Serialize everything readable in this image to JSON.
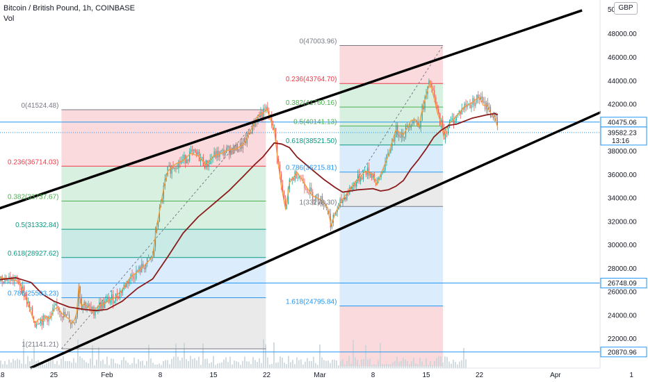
{
  "header": {
    "title": "Bitcoin / British Pound, 1h, COINBASE",
    "volume_label": "Vol"
  },
  "currency_badge": "GBP",
  "chart_data": {
    "type": "line",
    "title": "Bitcoin / British Pound, 1h, COINBASE",
    "ylim": [
      19500,
      50500
    ],
    "y_ticks": [
      22000,
      24000,
      26000,
      28000,
      30000,
      32000,
      34000,
      36000,
      38000,
      40000,
      42000,
      44000,
      46000,
      48000
    ],
    "y_tick_labels": [
      "22000.00",
      "24000.00",
      "26000.00",
      "28000.00",
      "30000.00",
      "32000.00",
      "34000.00",
      "36000.00",
      "38000.00",
      "40000.00",
      "42000.00",
      "44000.00",
      "46000.00",
      "48000.00"
    ],
    "y_top_partial_label": "50",
    "x_ticks": [
      {
        "label": "18",
        "day": -14
      },
      {
        "label": "25",
        "day": -7
      },
      {
        "label": "Feb",
        "day": 0
      },
      {
        "label": "8",
        "day": 7
      },
      {
        "label": "15",
        "day": 14
      },
      {
        "label": "22",
        "day": 21
      },
      {
        "label": "Mar",
        "day": 28
      },
      {
        "label": "8",
        "day": 35
      },
      {
        "label": "15",
        "day": 42
      },
      {
        "label": "22",
        "day": 49
      },
      {
        "label": "Apr",
        "day": 59
      },
      {
        "label": "1",
        "day": 69
      }
    ],
    "price_series": [
      [
        -14.7,
        27600
      ],
      [
        -14,
        27200
      ],
      [
        -12.5,
        27100
      ],
      [
        -11.5,
        26800
      ],
      [
        -11,
        26000
      ],
      [
        -10.5,
        25100
      ],
      [
        -10,
        24200
      ],
      [
        -9.5,
        23300
      ],
      [
        -9,
        23700
      ],
      [
        -8.5,
        23500
      ],
      [
        -8,
        23900
      ],
      [
        -7.5,
        23700
      ],
      [
        -7,
        24500
      ],
      [
        -6.5,
        24700
      ],
      [
        -6,
        24200
      ],
      [
        -5.5,
        23900
      ],
      [
        -5,
        23700
      ],
      [
        -4.7,
        23300
      ],
      [
        -4.3,
        23600
      ],
      [
        -4,
        24200
      ],
      [
        -3.7,
        26700
      ],
      [
        -3.4,
        24800
      ],
      [
        -3,
        25000
      ],
      [
        -2.5,
        24700
      ],
      [
        -2,
        24300
      ],
      [
        -1.5,
        24500
      ],
      [
        -1,
        24900
      ],
      [
        -0.5,
        24900
      ],
      [
        0,
        25200
      ],
      [
        1,
        25500
      ],
      [
        2,
        26200
      ],
      [
        3,
        27200
      ],
      [
        4,
        27700
      ],
      [
        5,
        28300
      ],
      [
        6,
        29000
      ],
      [
        6.5,
        31500
      ],
      [
        7,
        33200
      ],
      [
        7.5,
        35000
      ],
      [
        8,
        36300
      ],
      [
        9,
        36900
      ],
      [
        10,
        37200
      ],
      [
        11,
        37800
      ],
      [
        12,
        37600
      ],
      [
        13,
        36800
      ],
      [
        14,
        37600
      ],
      [
        15,
        37800
      ],
      [
        16,
        38100
      ],
      [
        17,
        38200
      ],
      [
        18,
        38600
      ],
      [
        19,
        39900
      ],
      [
        19.5,
        40600
      ],
      [
        20,
        41100
      ],
      [
        20.5,
        41200
      ],
      [
        21,
        41600
      ],
      [
        21.5,
        40700
      ],
      [
        22,
        39800
      ],
      [
        22.5,
        37000
      ],
      [
        23,
        34700
      ],
      [
        23.5,
        33000
      ],
      [
        24,
        35300
      ],
      [
        25,
        36200
      ],
      [
        26,
        35200
      ],
      [
        27,
        34200
      ],
      [
        28,
        33900
      ],
      [
        28.5,
        33600
      ],
      [
        29,
        33200
      ],
      [
        29.5,
        31600
      ],
      [
        30,
        32700
      ],
      [
        31,
        33900
      ],
      [
        32,
        34800
      ],
      [
        33,
        35600
      ],
      [
        34,
        36300
      ],
      [
        35,
        36000
      ],
      [
        35.5,
        35100
      ],
      [
        36,
        36000
      ],
      [
        37,
        37600
      ],
      [
        37.5,
        38800
      ],
      [
        38,
        39800
      ],
      [
        39,
        39400
      ],
      [
        40,
        40600
      ],
      [
        40.5,
        40700
      ],
      [
        41,
        40100
      ],
      [
        41.5,
        41600
      ],
      [
        42,
        42800
      ],
      [
        42.5,
        43900
      ],
      [
        43,
        42600
      ],
      [
        43.5,
        41200
      ],
      [
        44,
        40300
      ],
      [
        44.3,
        39200
      ],
      [
        44.6,
        39800
      ],
      [
        45,
        40300
      ],
      [
        46,
        41000
      ],
      [
        47,
        41800
      ],
      [
        48,
        42100
      ],
      [
        48.5,
        42400
      ],
      [
        49,
        42600
      ],
      [
        49.5,
        41900
      ],
      [
        50,
        41900
      ],
      [
        50.5,
        41200
      ],
      [
        51,
        40900
      ],
      [
        51.4,
        40000
      ]
    ],
    "ma_series": [
      [
        -14.7,
        27000
      ],
      [
        -12,
        27200
      ],
      [
        -10,
        26800
      ],
      [
        -8.5,
        25800
      ],
      [
        -7,
        25200
      ],
      [
        -5,
        24700
      ],
      [
        -3,
        24500
      ],
      [
        -1.5,
        24400
      ],
      [
        0,
        24500
      ],
      [
        2,
        25200
      ],
      [
        4,
        26300
      ],
      [
        6,
        27100
      ],
      [
        8,
        29000
      ],
      [
        10,
        31000
      ],
      [
        12,
        32400
      ],
      [
        14,
        33500
      ],
      [
        16,
        34600
      ],
      [
        18,
        35900
      ],
      [
        19.5,
        36900
      ],
      [
        20.5,
        37500
      ],
      [
        22,
        38700
      ],
      [
        23,
        38600
      ],
      [
        24,
        38300
      ],
      [
        25,
        37500
      ],
      [
        27,
        36400
      ],
      [
        28.5,
        35600
      ],
      [
        30,
        34900
      ],
      [
        31,
        34500
      ],
      [
        33,
        34700
      ],
      [
        35,
        34800
      ],
      [
        36,
        34600
      ],
      [
        37,
        34700
      ],
      [
        38,
        35000
      ],
      [
        39,
        35500
      ],
      [
        40,
        36500
      ],
      [
        41,
        37300
      ],
      [
        42,
        38200
      ],
      [
        43,
        39200
      ],
      [
        44,
        39800
      ],
      [
        45,
        40200
      ],
      [
        46,
        40300
      ],
      [
        48,
        40800
      ],
      [
        50,
        41100
      ],
      [
        51,
        41200
      ],
      [
        51.4,
        41100
      ]
    ],
    "trend_lines": [
      {
        "x1": -14.7,
        "y1": 33000,
        "x2": 62.5,
        "y2": 50000
      },
      {
        "x1": -10.1,
        "y1": 19500,
        "x2": 73.5,
        "y2": 43800
      }
    ],
    "fib_first": {
      "x1": -6,
      "x2": 20.9,
      "y_top": 41524.48,
      "y_bottom": 21141.21,
      "levels": [
        {
          "label": "0(41524.48)",
          "value": 41524.48
        },
        {
          "label": "0.236(36714.03)",
          "value": 36714.03
        },
        {
          "label": "0.382(33737.67)",
          "value": 33737.67
        },
        {
          "label": "0.5(31332.84)",
          "value": 31332.84
        },
        {
          "label": "0.618(28927.62)",
          "value": 28927.62
        },
        {
          "label": "0.786(25503.23)",
          "value": 25503.23
        },
        {
          "label": "1(21141.21)",
          "value": 21141.21
        }
      ]
    },
    "fib_second": {
      "x1": 30.6,
      "x2": 44.2,
      "y_top": 47003.96,
      "y_bottom": 33278.3,
      "y_ext": 19650,
      "levels": [
        {
          "label": "0(47003.96)",
          "value": 47003.96
        },
        {
          "label": "0.236(43764.70)",
          "value": 43764.7
        },
        {
          "label": "0.382(41760.16)",
          "value": 41760.16
        },
        {
          "label": "0.5(40141.13)",
          "value": 40141.13
        },
        {
          "label": "0.618(38521.50)",
          "value": 38521.5
        },
        {
          "label": "0.786(36215.81)",
          "value": 36215.81
        },
        {
          "label": "1(33278.30)",
          "value": 33278.3
        },
        {
          "label": "1.618(24795.84)",
          "value": 24795.84
        }
      ]
    },
    "horizontal_levels": [
      {
        "label": "40475.06",
        "value": 40475.06,
        "style": "solid"
      },
      {
        "label": "26748.09",
        "value": 26748.09,
        "style": "solid"
      },
      {
        "label": "20870.96",
        "value": 20870.96,
        "style": "solid"
      },
      {
        "label": "39582.23",
        "value": 39582.23,
        "style": "dotted"
      }
    ],
    "current_price": {
      "value": 39582.23,
      "label": "39582.23",
      "countdown": "13:16"
    },
    "colors": {
      "candles_up": "#26a69a",
      "candles_down": "#ef5350",
      "price_line": "#f39c3c",
      "moving_average": "#8b1a1a",
      "trend": "#000000",
      "level": "#2196f3",
      "fib_red_fill": "#f8cdd0",
      "fib_green_fill": "#c9ebd4",
      "fib_teal_fill": "#b8e3dc",
      "fib_blue_fill": "#cfe6fb",
      "fib_gray_fill": "#e3e3e3"
    }
  }
}
